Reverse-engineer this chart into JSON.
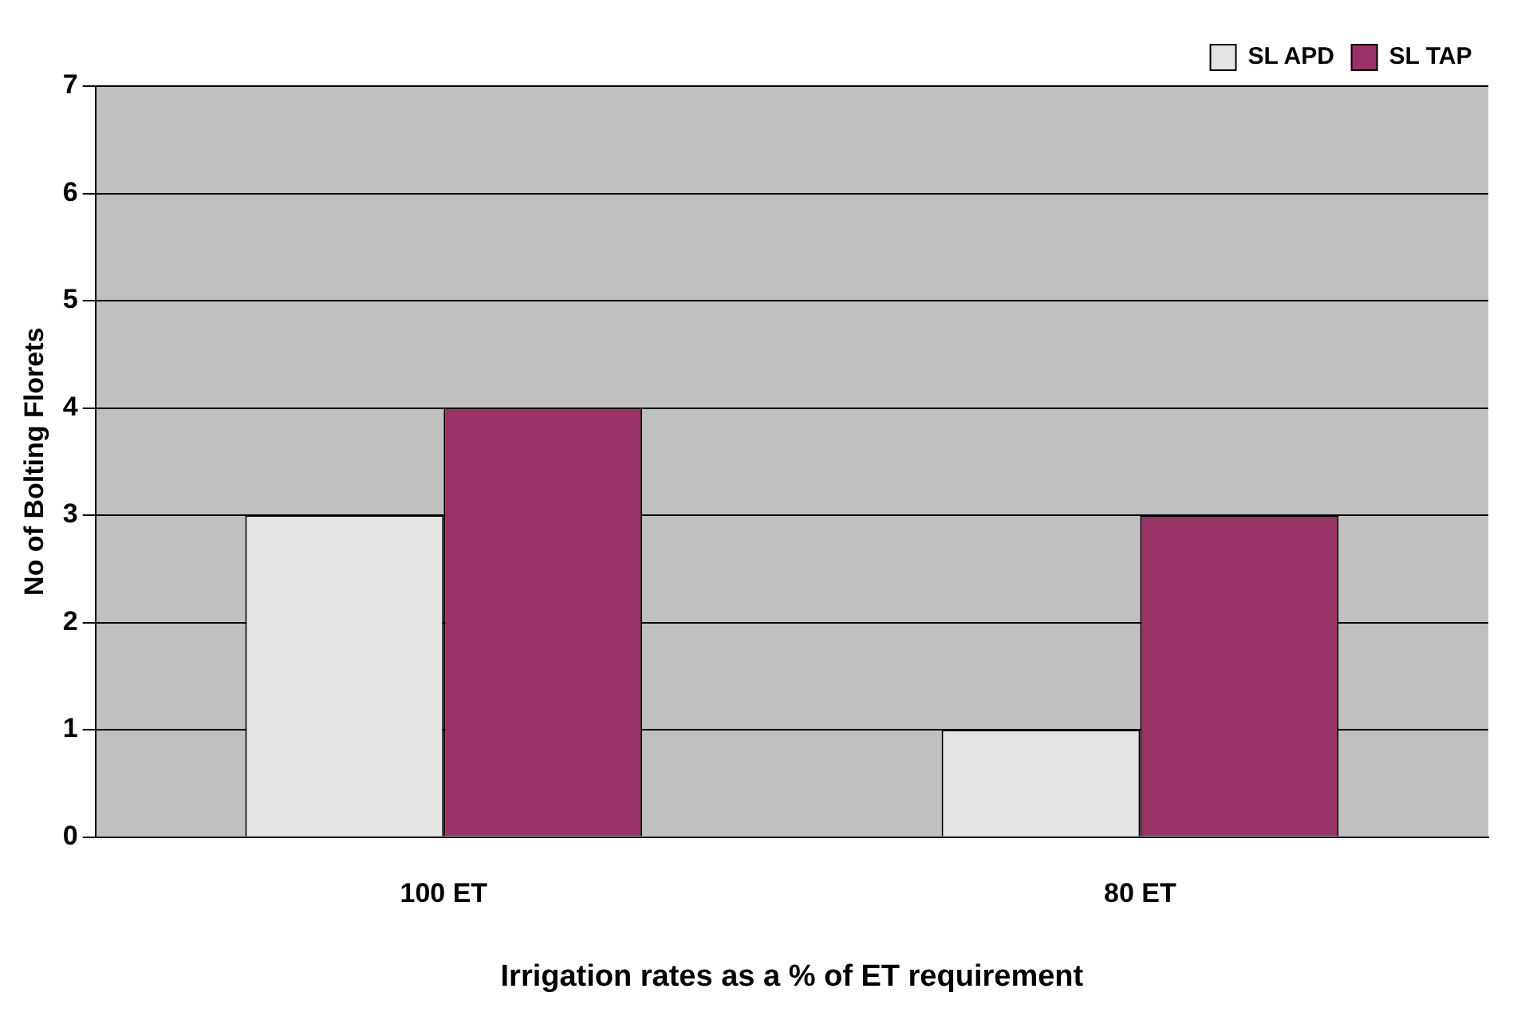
{
  "chart_data": {
    "type": "bar",
    "xlabel": "Irrigation rates as a % of ET requirement",
    "ylabel": "No of Bolting Florets",
    "categories": [
      "100 ET",
      "80 ET"
    ],
    "series": [
      {
        "name": "SL APD",
        "color": "#e4e4e4",
        "values": [
          3,
          1
        ]
      },
      {
        "name": "SL TAP",
        "color": "#993366",
        "values": [
          4,
          3
        ]
      }
    ],
    "ylim": [
      0,
      7
    ],
    "yticks": [
      0,
      1,
      2,
      3,
      4,
      5,
      6,
      7
    ],
    "grid": "y",
    "legend": "top right"
  }
}
